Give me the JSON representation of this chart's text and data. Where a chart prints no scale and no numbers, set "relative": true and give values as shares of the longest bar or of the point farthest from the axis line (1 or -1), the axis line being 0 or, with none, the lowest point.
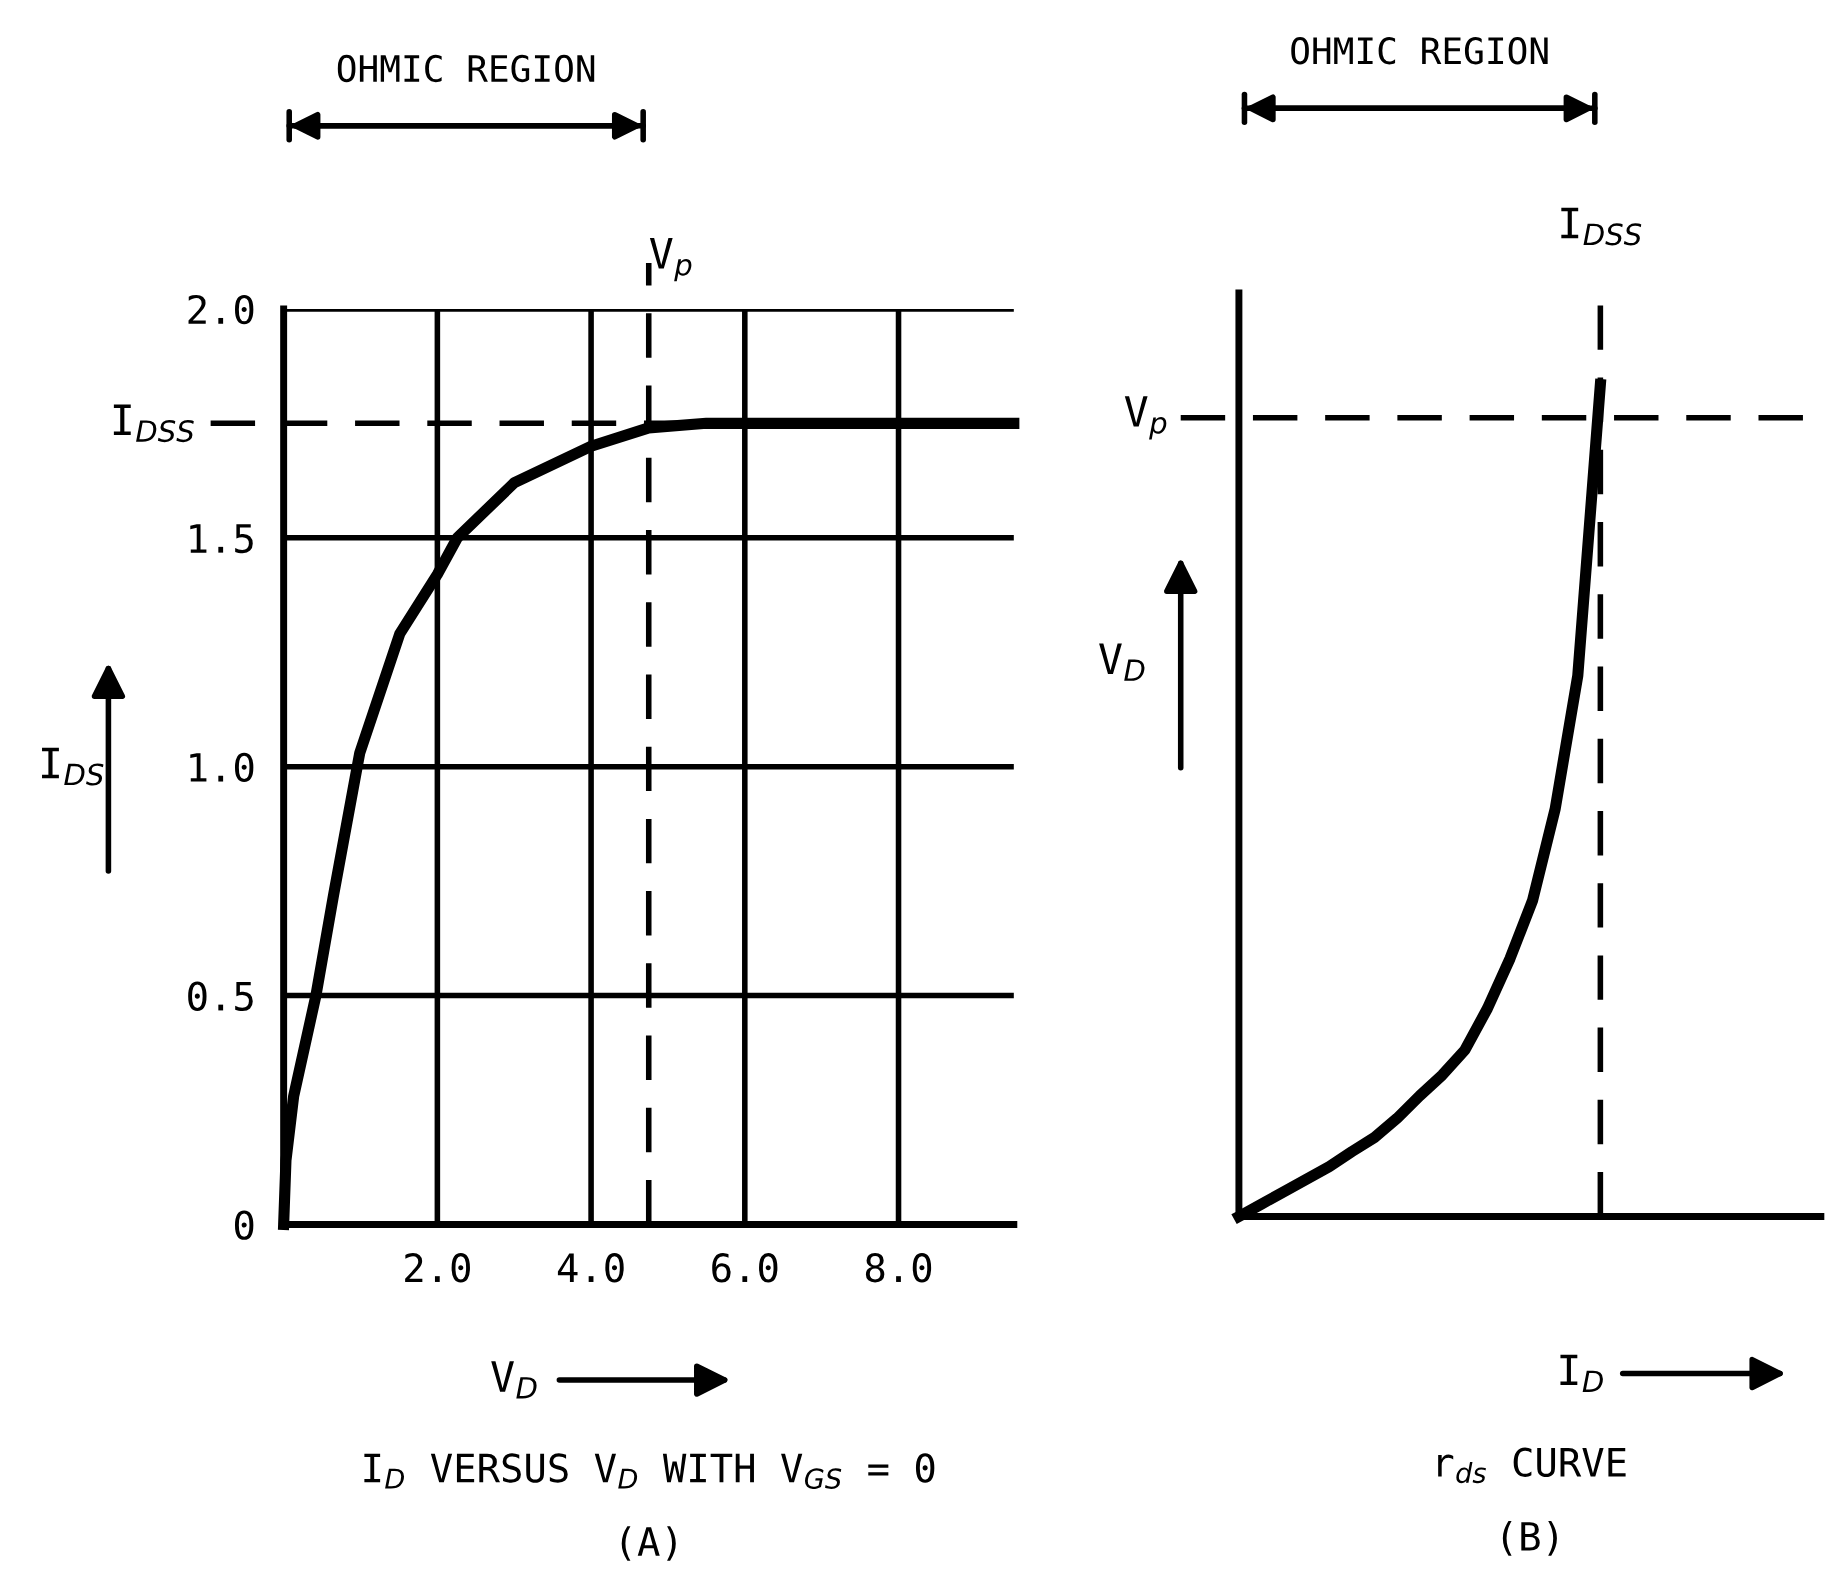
{
  "chart_data": [
    {
      "type": "line",
      "xlabel": "V$_{D}$",
      "ylabel": "I$_{DS}$",
      "annotations": [
        "OHMIC REGION",
        "I$_{D}$ VERSUS V$_{D}$ WITH V$_{GS}$ = 0",
        "(A)"
      ],
      "series": [
        {
          "color": "#000000",
          "x": [
            0,
            0.03,
            0.13,
            0.42,
            0.65,
            0.99,
            1.51,
            2.0,
            2.26,
            3.0,
            4.0,
            4.75,
            5.5,
            9.5
          ],
          "values": [
            0,
            0.14,
            0.28,
            0.5,
            0.72,
            1.03,
            1.29,
            1.42,
            1.5,
            1.62,
            1.7,
            1.74,
            1.75,
            1.75
          ]
        }
      ],
      "xlim": [
        0,
        9.5
      ],
      "ylim": [
        0,
        2.0
      ],
      "xticks": [
        {
          "value": 2.0,
          "label": "2.0"
        },
        {
          "value": 4.0,
          "label": "4.0"
        },
        {
          "value": 6.0,
          "label": "6.0"
        },
        {
          "value": 8.0,
          "label": "8.0"
        }
      ],
      "yticks": [
        0,
        {
          "value": 0.5,
          "label": "0.5"
        },
        {
          "value": 1.0,
          "label": "1.0"
        },
        {
          "value": 1.5,
          "label": "1.5"
        },
        {
          "value": 2.0,
          "label": "2.0"
        }
      ],
      "grid": true,
      "line_style": "solid",
      "ref_lines": [
        {
          "axis": "y",
          "value": 1.75,
          "label": "I$_{DSS}$",
          "line_style": "dashed"
        },
        {
          "axis": "x",
          "value": 4.75,
          "label": "V$_{p}$",
          "line_style": "dashed"
        }
      ]
    },
    {
      "type": "line",
      "relative": true,
      "xlabel": "I$_{D}$",
      "ylabel": "V$_{D}$",
      "annotations": [
        "OHMIC REGION",
        "r$_{ds}$ CURVE",
        "(B)"
      ],
      "categories": [
        null,
        null,
        null,
        null,
        null,
        null,
        null,
        null,
        null,
        null,
        null,
        null,
        null,
        null,
        null,
        null,
        null
      ],
      "series": [
        {
          "color": "#000000",
          "values": [
            0,
            0.015,
            0.03,
            0.045,
            0.06,
            0.078,
            0.095,
            0.118,
            0.145,
            0.17,
            0.2,
            0.25,
            0.31,
            0.38,
            0.49,
            0.65,
            1.0
          ]
        }
      ],
      "tick_labels": false,
      "grid": false,
      "line_style": "solid",
      "ref_lines": [
        {
          "axis": "y",
          "value": 0.96,
          "label": "V$_{p}$",
          "line_style": "dashed"
        },
        {
          "axis": "x",
          "label": "I$_{DSS}$",
          "line_style": "dashed"
        }
      ]
    }
  ]
}
